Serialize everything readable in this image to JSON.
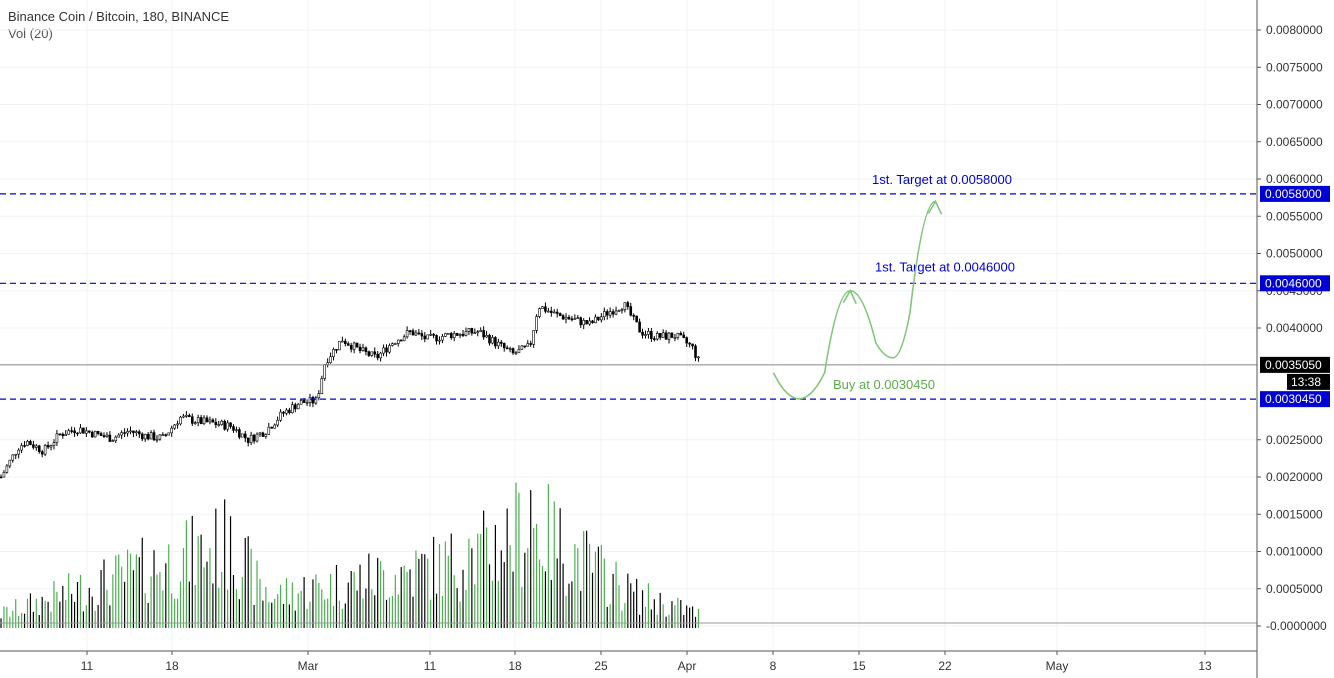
{
  "header": {
    "title": "Binance Coin / Bitcoin, 180, BINANCE",
    "indicator": "Vol (20)"
  },
  "chart_data": {
    "type": "candlestick",
    "symbol": "Binance Coin / Bitcoin",
    "interval": "180",
    "exchange": "BINANCE",
    "ylim": [
      0.0,
      0.0082
    ],
    "y_ticks": [
      "0.0080000",
      "0.0075000",
      "0.0070000",
      "0.0065000",
      "0.0060000",
      "0.0055000",
      "0.0050000",
      "0.0045000",
      "0.0040000",
      "0.0025000",
      "0.0020000",
      "0.0015000",
      "0.0010000",
      "0.0005000",
      "-0.0000000"
    ],
    "x_ticks": [
      "11",
      "18",
      "Mar",
      "11",
      "18",
      "25",
      "Apr",
      "8",
      "15",
      "22",
      "May",
      "13"
    ],
    "grid": true,
    "price_path": [
      {
        "d": 0,
        "p": 0.002
      },
      {
        "d": 2,
        "p": 0.0024
      },
      {
        "d": 3,
        "p": 0.00248
      },
      {
        "d": 5,
        "p": 0.00235
      },
      {
        "d": 7,
        "p": 0.00258
      },
      {
        "d": 9,
        "p": 0.00265
      },
      {
        "d": 11,
        "p": 0.00258
      },
      {
        "d": 13,
        "p": 0.00252
      },
      {
        "d": 15,
        "p": 0.00262
      },
      {
        "d": 17,
        "p": 0.00255
      },
      {
        "d": 19,
        "p": 0.00252
      },
      {
        "d": 21,
        "p": 0.0028
      },
      {
        "d": 23,
        "p": 0.00275
      },
      {
        "d": 25,
        "p": 0.00272
      },
      {
        "d": 27,
        "p": 0.00268
      },
      {
        "d": 29,
        "p": 0.0025
      },
      {
        "d": 31,
        "p": 0.00262
      },
      {
        "d": 33,
        "p": 0.00285
      },
      {
        "d": 35,
        "p": 0.003
      },
      {
        "d": 37,
        "p": 0.00302
      },
      {
        "d": 38,
        "p": 0.00355
      },
      {
        "d": 40,
        "p": 0.00385
      },
      {
        "d": 42,
        "p": 0.0037
      },
      {
        "d": 44,
        "p": 0.0036
      },
      {
        "d": 46,
        "p": 0.00382
      },
      {
        "d": 48,
        "p": 0.00395
      },
      {
        "d": 50,
        "p": 0.00385
      },
      {
        "d": 53,
        "p": 0.00392
      },
      {
        "d": 56,
        "p": 0.00395
      },
      {
        "d": 58,
        "p": 0.0038
      },
      {
        "d": 60,
        "p": 0.00365
      },
      {
        "d": 62,
        "p": 0.00375
      },
      {
        "d": 63,
        "p": 0.0043
      },
      {
        "d": 65,
        "p": 0.00418
      },
      {
        "d": 67,
        "p": 0.00412
      },
      {
        "d": 69,
        "p": 0.00405
      },
      {
        "d": 71,
        "p": 0.0042
      },
      {
        "d": 73,
        "p": 0.00432
      },
      {
        "d": 75,
        "p": 0.00395
      },
      {
        "d": 77,
        "p": 0.00388
      },
      {
        "d": 79,
        "p": 0.0039
      },
      {
        "d": 81,
        "p": 0.00375
      },
      {
        "d": 82,
        "p": 0.003505
      }
    ],
    "volume_path": [
      {
        "d": 0,
        "v": 0.00025
      },
      {
        "d": 27,
        "v": 0.0015
      },
      {
        "d": 31,
        "v": 0.00055
      },
      {
        "d": 37,
        "v": 0.00072
      },
      {
        "d": 55,
        "v": 0.0012
      },
      {
        "d": 62,
        "v": 0.00185
      },
      {
        "d": 74,
        "v": 0.0006
      },
      {
        "d": 82,
        "v": 0.00025
      }
    ],
    "last_price": "0.0035050",
    "countdown": "13:38",
    "levels": [
      {
        "price": 0.0058,
        "label": "0.0058000",
        "note": "1st. Target at 0.0058000",
        "color": "#0000d4"
      },
      {
        "price": 0.0046,
        "label": "0.0046000",
        "note": "1st. Target at 0.0046000",
        "color": "#0000d4"
      },
      {
        "price": 0.003045,
        "label": "0.0030450",
        "note": "Buy at 0.0030450",
        "color": "#0000d4",
        "note_color": "#5cac4b"
      }
    ],
    "projection": {
      "color": "#82c67a",
      "points": [
        {
          "d": 82,
          "p": 0.0034
        },
        {
          "d": 85,
          "p": 0.00305
        },
        {
          "d": 88,
          "p": 0.0034
        },
        {
          "d": 91,
          "p": 0.0045
        },
        {
          "d": 94,
          "p": 0.0038
        },
        {
          "d": 96,
          "p": 0.0036
        },
        {
          "d": 98,
          "p": 0.0042
        },
        {
          "d": 101,
          "p": 0.0057
        }
      ]
    },
    "colors": {
      "up": "#ffffff",
      "down": "#000000",
      "vol_up": "#4caf50",
      "vol_down": "#000000",
      "grid": "#f0f3f5",
      "axis": "#555555",
      "last_price_bg": "#000000"
    }
  }
}
